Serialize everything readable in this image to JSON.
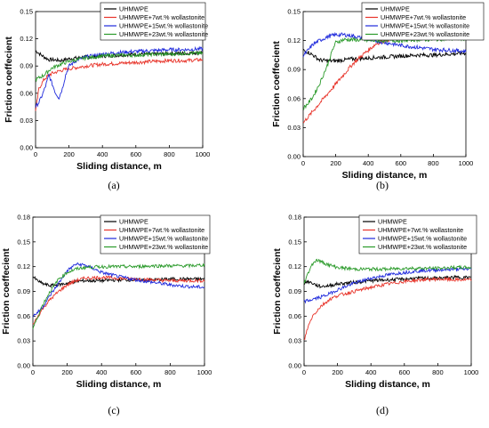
{
  "chart_data": [
    {
      "type": "line",
      "panel": "(a)",
      "xlabel": "Sliding distance, m",
      "ylabel": "Friction coeffecient",
      "xlim": [
        0,
        1000
      ],
      "ylim": [
        0,
        0.15
      ],
      "xticks": [
        "0",
        "200",
        "400",
        "600",
        "800",
        "1000"
      ],
      "yticks": [
        "0.00",
        "0.03",
        "0.06",
        "0.09",
        "0.12",
        "0.15"
      ],
      "legend_position": "top-right",
      "series": [
        {
          "name": "UHMWPE",
          "color": "#000000",
          "x": [
            0,
            20,
            50,
            80,
            100,
            150,
            200,
            300,
            400,
            500,
            600,
            700,
            800,
            900,
            1000
          ],
          "y": [
            0.107,
            0.104,
            0.1,
            0.097,
            0.097,
            0.096,
            0.098,
            0.1,
            0.101,
            0.102,
            0.103,
            0.103,
            0.104,
            0.104,
            0.105
          ]
        },
        {
          "name": "UHMWPE+7wt.% wollastonite",
          "color": "#e8342a",
          "x": [
            0,
            20,
            50,
            80,
            100,
            150,
            200,
            300,
            400,
            500,
            600,
            700,
            800,
            900,
            1000
          ],
          "y": [
            0.04,
            0.065,
            0.075,
            0.08,
            0.082,
            0.085,
            0.087,
            0.09,
            0.092,
            0.093,
            0.094,
            0.095,
            0.096,
            0.096,
            0.097
          ]
        },
        {
          "name": "UHMWPE+15wt.% wollastonite",
          "color": "#1f2adc",
          "x": [
            0,
            20,
            40,
            60,
            80,
            100,
            120,
            140,
            160,
            180,
            200,
            250,
            300,
            400,
            500,
            600,
            700,
            800,
            900,
            1000
          ],
          "y": [
            0.045,
            0.05,
            0.058,
            0.068,
            0.08,
            0.07,
            0.06,
            0.055,
            0.065,
            0.08,
            0.09,
            0.097,
            0.1,
            0.103,
            0.105,
            0.106,
            0.107,
            0.108,
            0.108,
            0.109
          ]
        },
        {
          "name": "UHMWPE+23wt.% wollastonite",
          "color": "#2a9a2a",
          "x": [
            0,
            20,
            50,
            80,
            100,
            150,
            200,
            250,
            300,
            400,
            500,
            600,
            700,
            800,
            900,
            1000
          ],
          "y": [
            0.075,
            0.077,
            0.08,
            0.085,
            0.088,
            0.092,
            0.095,
            0.097,
            0.099,
            0.101,
            0.102,
            0.102,
            0.103,
            0.103,
            0.104,
            0.104
          ]
        }
      ]
    },
    {
      "type": "line",
      "panel": "(b)",
      "xlabel": "Sliding distance, m",
      "ylabel": "Friction coeffecient",
      "xlim": [
        0,
        1000
      ],
      "ylim": [
        0,
        0.15
      ],
      "xticks": [
        "0",
        "200",
        "400",
        "600",
        "800",
        "1000"
      ],
      "yticks": [
        "0.00",
        "0.03",
        "0.06",
        "0.09",
        "0.12",
        "0.15"
      ],
      "legend_position": "top-right",
      "series": [
        {
          "name": "UHMWPE",
          "color": "#000000",
          "x": [
            0,
            30,
            60,
            100,
            150,
            200,
            300,
            400,
            500,
            600,
            700,
            800,
            900,
            1000
          ],
          "y": [
            0.11,
            0.108,
            0.105,
            0.1,
            0.099,
            0.099,
            0.101,
            0.102,
            0.103,
            0.104,
            0.105,
            0.105,
            0.106,
            0.107
          ]
        },
        {
          "name": "UHMWPE+7wt.% wollastonite",
          "color": "#e8342a",
          "x": [
            0,
            50,
            100,
            150,
            200,
            250,
            300,
            350,
            400,
            450,
            500,
            550,
            600,
            700,
            800,
            900,
            1000
          ],
          "y": [
            0.035,
            0.045,
            0.055,
            0.065,
            0.075,
            0.085,
            0.095,
            0.103,
            0.11,
            0.117,
            0.12,
            0.122,
            0.124,
            0.126,
            0.127,
            0.127,
            0.128
          ]
        },
        {
          "name": "UHMWPE+15wt.% wollastonite",
          "color": "#1f2adc",
          "x": [
            0,
            30,
            60,
            100,
            150,
            200,
            250,
            300,
            400,
            500,
            600,
            700,
            800,
            900,
            1000
          ],
          "y": [
            0.104,
            0.11,
            0.116,
            0.12,
            0.124,
            0.126,
            0.126,
            0.125,
            0.121,
            0.118,
            0.115,
            0.113,
            0.111,
            0.11,
            0.109
          ]
        },
        {
          "name": "UHMWPE+23wt.% wollastonite",
          "color": "#2a9a2a",
          "x": [
            0,
            30,
            60,
            100,
            150,
            180,
            200,
            250,
            300,
            400,
            500,
            600,
            700,
            800,
            900,
            1000
          ],
          "y": [
            0.05,
            0.055,
            0.062,
            0.075,
            0.095,
            0.11,
            0.118,
            0.121,
            0.121,
            0.12,
            0.12,
            0.12,
            0.121,
            0.121,
            0.122,
            0.122
          ]
        }
      ]
    },
    {
      "type": "line",
      "panel": "(c)",
      "xlabel": "Sliding distance, m",
      "ylabel": "Friction coeffecient",
      "xlim": [
        0,
        1000
      ],
      "ylim": [
        0,
        0.18
      ],
      "xticks": [
        "0",
        "200",
        "400",
        "600",
        "800",
        "1000"
      ],
      "yticks": [
        "0.00",
        "0.03",
        "0.06",
        "0.09",
        "0.12",
        "0.15",
        "0.18"
      ],
      "legend_position": "top-right",
      "series": [
        {
          "name": "UHMWPE",
          "color": "#000000",
          "x": [
            0,
            20,
            50,
            80,
            100,
            150,
            200,
            250,
            300,
            400,
            500,
            600,
            700,
            800,
            900,
            1000
          ],
          "y": [
            0.108,
            0.104,
            0.1,
            0.098,
            0.097,
            0.098,
            0.1,
            0.102,
            0.103,
            0.103,
            0.104,
            0.104,
            0.104,
            0.105,
            0.105,
            0.105
          ]
        },
        {
          "name": "UHMWPE+7wt.% wollastonite",
          "color": "#e8342a",
          "x": [
            0,
            30,
            60,
            100,
            150,
            200,
            250,
            300,
            400,
            500,
            600,
            700,
            800,
            900,
            1000
          ],
          "y": [
            0.05,
            0.06,
            0.07,
            0.08,
            0.09,
            0.098,
            0.103,
            0.106,
            0.107,
            0.106,
            0.105,
            0.104,
            0.103,
            0.103,
            0.103
          ]
        },
        {
          "name": "UHMWPE+15wt.% wollastonite",
          "color": "#1f2adc",
          "x": [
            0,
            30,
            60,
            100,
            150,
            200,
            250,
            300,
            350,
            400,
            500,
            600,
            700,
            800,
            900,
            1000
          ],
          "y": [
            0.06,
            0.065,
            0.072,
            0.085,
            0.1,
            0.115,
            0.123,
            0.122,
            0.118,
            0.113,
            0.108,
            0.104,
            0.101,
            0.098,
            0.096,
            0.095
          ]
        },
        {
          "name": "UHMWPE+23wt.% wollastonite",
          "color": "#2a9a2a",
          "x": [
            0,
            30,
            60,
            100,
            150,
            200,
            250,
            300,
            400,
            500,
            600,
            700,
            800,
            900,
            1000
          ],
          "y": [
            0.045,
            0.06,
            0.075,
            0.09,
            0.105,
            0.113,
            0.117,
            0.119,
            0.12,
            0.12,
            0.12,
            0.121,
            0.121,
            0.121,
            0.122
          ]
        }
      ]
    },
    {
      "type": "line",
      "panel": "(d)",
      "xlabel": "Sliding distance, m",
      "ylabel": "Friction coeffecient",
      "xlim": [
        0,
        1000
      ],
      "ylim": [
        0,
        0.18
      ],
      "xticks": [
        "0",
        "200",
        "400",
        "600",
        "800",
        "1000"
      ],
      "yticks": [
        "0.00",
        "0.03",
        "0.06",
        "0.09",
        "0.12",
        "0.15",
        "0.18"
      ],
      "legend_position": "top-right",
      "series": [
        {
          "name": "UHMWPE",
          "color": "#000000",
          "x": [
            0,
            20,
            50,
            80,
            100,
            150,
            200,
            300,
            400,
            500,
            600,
            700,
            800,
            900,
            1000
          ],
          "y": [
            0.1,
            0.102,
            0.1,
            0.097,
            0.096,
            0.097,
            0.099,
            0.101,
            0.103,
            0.104,
            0.105,
            0.106,
            0.106,
            0.107,
            0.107
          ]
        },
        {
          "name": "UHMWPE+7wt.% wollastonite",
          "color": "#e8342a",
          "x": [
            0,
            20,
            50,
            100,
            150,
            200,
            300,
            400,
            500,
            600,
            700,
            800,
            900,
            1000
          ],
          "y": [
            0.03,
            0.045,
            0.06,
            0.072,
            0.08,
            0.085,
            0.09,
            0.095,
            0.099,
            0.102,
            0.104,
            0.105,
            0.104,
            0.104
          ]
        },
        {
          "name": "UHMWPE+15wt.% wollastonite",
          "color": "#1f2adc",
          "x": [
            0,
            30,
            60,
            100,
            150,
            200,
            300,
            400,
            500,
            600,
            700,
            800,
            900,
            1000
          ],
          "y": [
            0.078,
            0.079,
            0.081,
            0.083,
            0.087,
            0.092,
            0.1,
            0.106,
            0.11,
            0.113,
            0.115,
            0.116,
            0.117,
            0.117
          ]
        },
        {
          "name": "UHMWPE+23wt.% wollastonite",
          "color": "#2a9a2a",
          "x": [
            0,
            20,
            40,
            60,
            80,
            100,
            150,
            200,
            300,
            400,
            500,
            600,
            700,
            800,
            900,
            1000
          ],
          "y": [
            0.1,
            0.11,
            0.12,
            0.126,
            0.128,
            0.126,
            0.122,
            0.119,
            0.117,
            0.117,
            0.117,
            0.118,
            0.118,
            0.118,
            0.119,
            0.119
          ]
        }
      ]
    }
  ]
}
